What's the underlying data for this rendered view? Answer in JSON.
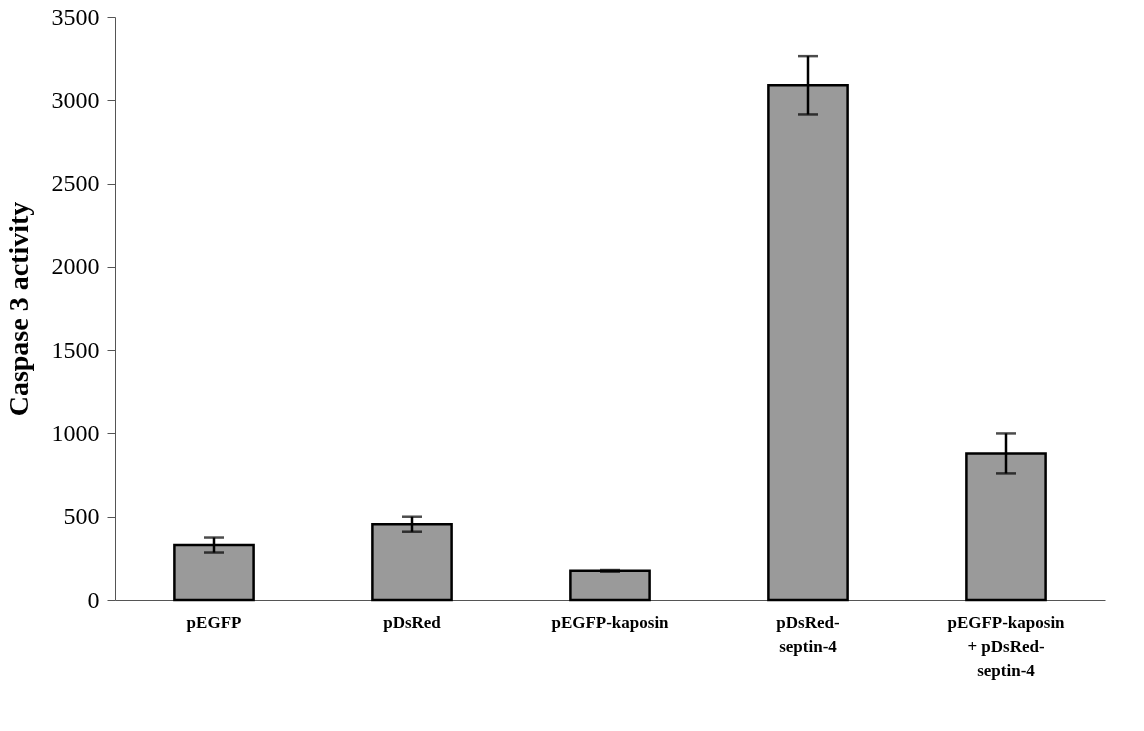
{
  "chart_data": {
    "type": "bar",
    "ylabel": "Caspase 3 activity",
    "categories": [
      "pEGFP",
      "pDsRed",
      "pEGFP-kaposin",
      "pDsRed-septin-4",
      "pEGFP-kaposin + pDsRed-septin-4"
    ],
    "values": [
      330,
      455,
      175,
      3090,
      880
    ],
    "errors": [
      45,
      45,
      5,
      175,
      120
    ],
    "color": "#9a9a9a",
    "ylim": [
      0,
      3500
    ],
    "yticks": [
      0,
      500,
      1000,
      1500,
      2000,
      2500,
      3000,
      3500
    ],
    "grid": false
  }
}
